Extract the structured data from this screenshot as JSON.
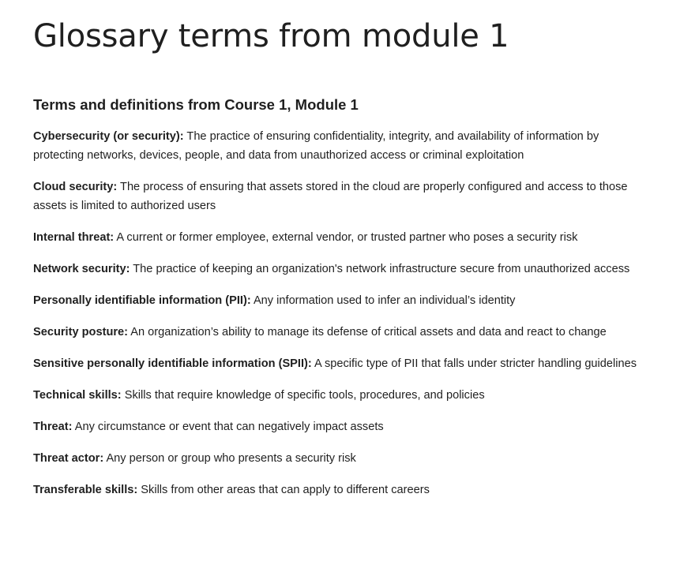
{
  "page_title": "Glossary terms from module 1",
  "section_heading": "Terms and definitions from Course 1, Module 1",
  "terms": [
    {
      "term": "Cybersecurity (or security):",
      "definition": "The practice of ensuring confidentiality, integrity, and availability of information by protecting networks, devices, people, and data from unauthorized access or criminal exploitation"
    },
    {
      "term": "Cloud security:",
      "definition": "The process of ensuring that assets stored in the cloud are properly configured and access to those assets is limited to authorized users"
    },
    {
      "term": "Internal threat:",
      "definition": "A current or former employee, external vendor, or trusted partner who poses a security risk"
    },
    {
      "term": "Network security:",
      "definition": "The practice of keeping an organization's network infrastructure secure from unauthorized access"
    },
    {
      "term": "Personally identifiable information (PII):",
      "definition": "Any information used to infer an individual’s identity"
    },
    {
      "term": "Security posture:",
      "definition": "An organization’s ability to manage its defense of critical assets and data and react to change"
    },
    {
      "term": "Sensitive personally identifiable information (SPII):",
      "definition": "A specific type of PII that falls under stricter handling guidelines"
    },
    {
      "term": "Technical skills:",
      "definition": "Skills that require knowledge of specific tools, procedures, and policies"
    },
    {
      "term": "Threat:",
      "definition": "Any circumstance or event that can negatively impact assets"
    },
    {
      "term": "Threat actor:",
      "definition": "Any person or group who presents a security risk"
    },
    {
      "term": "Transferable skills:",
      "definition": "Skills from other areas that can apply to different careers"
    }
  ]
}
